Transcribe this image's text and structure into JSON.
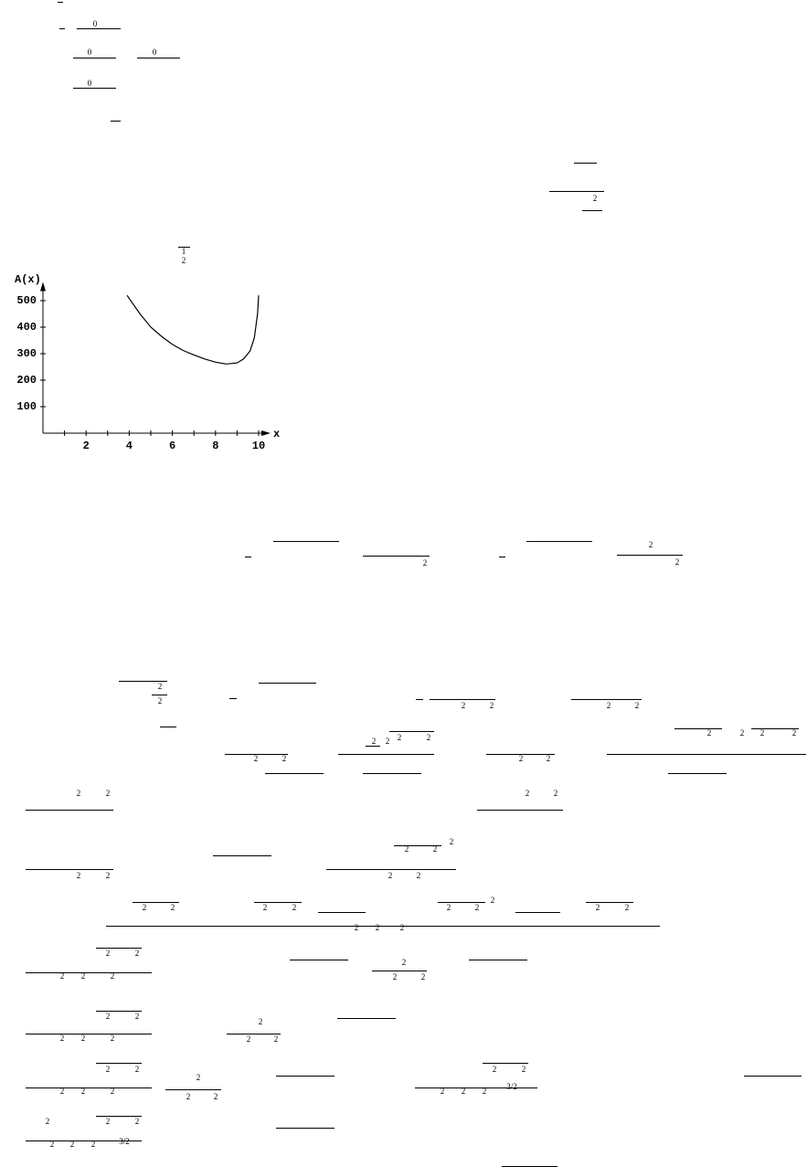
{
  "fragments": [
    "0",
    "0",
    "0",
    "0",
    "1",
    "2",
    "2",
    "2",
    "2",
    "2",
    "2",
    "2",
    "2",
    "2",
    "2",
    "2",
    "2",
    "2",
    "2",
    "2",
    "2",
    "2",
    "2",
    "2",
    "2",
    "2",
    "2",
    "2",
    "2",
    "2",
    "2",
    "2",
    "2",
    "2",
    "2",
    "2",
    "2",
    "2",
    "2",
    "2",
    "2",
    "2",
    "2",
    "2",
    "2",
    "2",
    "2",
    "2",
    "2",
    "2",
    "2",
    "2",
    "2",
    "2",
    "2",
    "2",
    "2",
    "2",
    "2",
    "2",
    "2",
    "2",
    "2",
    "2",
    "2",
    "2",
    "2",
    "2",
    "2",
    "2",
    "2",
    "2",
    "2",
    "2",
    "2",
    "2",
    "2",
    "2",
    "2",
    "2",
    "3/2",
    "2",
    "2",
    "2",
    "2",
    "2",
    "2",
    "3/2"
  ],
  "chart_data": {
    "type": "line",
    "xlabel": "x",
    "ylabel": "A(x)",
    "color": "#000000",
    "x": [
      3.9,
      4.5,
      5,
      5.5,
      6,
      6.5,
      7,
      7.5,
      8,
      8.5,
      9,
      9.3,
      9.6,
      9.8,
      9.95,
      10
    ],
    "values": [
      520,
      450,
      400,
      365,
      335,
      312,
      295,
      280,
      268,
      261,
      265,
      280,
      310,
      360,
      450,
      520
    ],
    "xlim": [
      0,
      10.3
    ],
    "ylim": [
      0,
      550
    ],
    "xticks": [
      2,
      4,
      6,
      8,
      10
    ],
    "xminor_ticks": [
      1,
      3,
      5,
      7,
      9
    ],
    "yticks": [
      100,
      200,
      300,
      400,
      500
    ]
  }
}
